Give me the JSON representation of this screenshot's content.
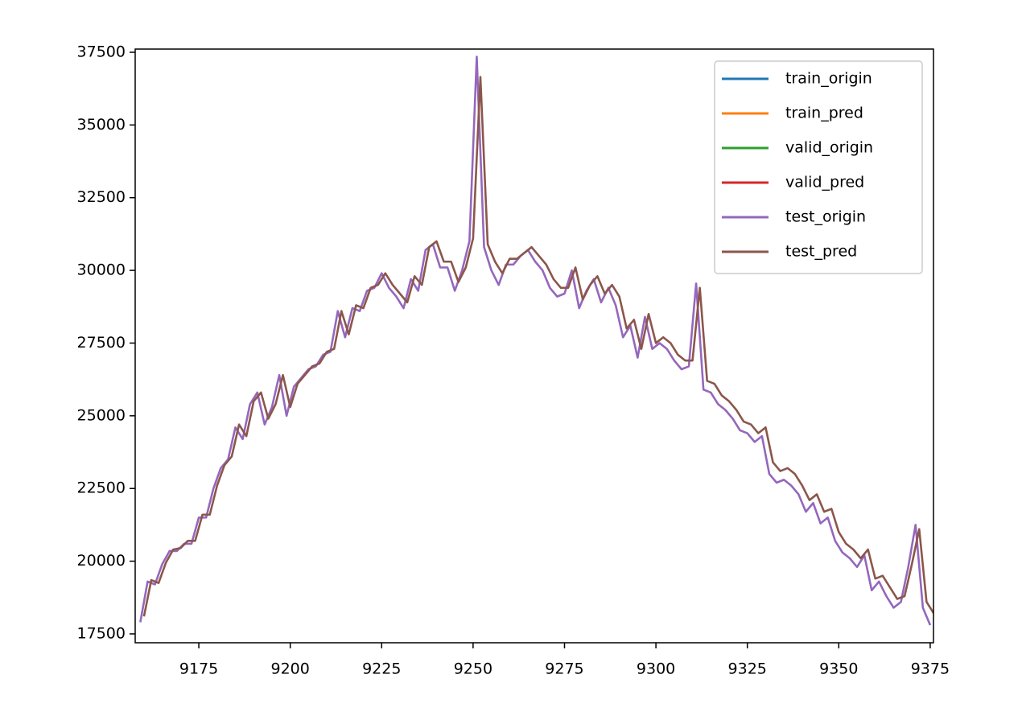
{
  "chart_data": {
    "type": "line",
    "xlim": [
      9157.6,
      9375.9
    ],
    "ylim": [
      17195,
      37610
    ],
    "xticks": [
      9175,
      9200,
      9225,
      9250,
      9275,
      9300,
      9325,
      9350,
      9375
    ],
    "yticks": [
      17500,
      20000,
      22500,
      25000,
      27500,
      30000,
      32500,
      35000,
      37500
    ],
    "legend": "upper right",
    "series": [
      {
        "name": "train_origin",
        "color": "#1f77b4",
        "x": [],
        "values": []
      },
      {
        "name": "train_pred",
        "color": "#ff7f0e",
        "x": [],
        "values": []
      },
      {
        "name": "valid_origin",
        "color": "#2ca02c",
        "x": [],
        "values": []
      },
      {
        "name": "valid_pred",
        "color": "#d62728",
        "x": [],
        "values": []
      },
      {
        "name": "test_origin",
        "color": "#9467bd",
        "x": [
          9159,
          9161,
          9163,
          9165,
          9167,
          9169,
          9171,
          9173,
          9175,
          9177,
          9179,
          9181,
          9183,
          9185,
          9187,
          9189,
          9191,
          9193,
          9195,
          9197,
          9199,
          9201,
          9203,
          9205,
          9207,
          9209,
          9211,
          9213,
          9215,
          9217,
          9219,
          9221,
          9223,
          9225,
          9227,
          9229,
          9231,
          9233,
          9235,
          9237,
          9239,
          9241,
          9243,
          9245,
          9247,
          9249,
          9251,
          9253,
          9255,
          9257,
          9259,
          9261,
          9263,
          9265,
          9267,
          9269,
          9271,
          9273,
          9275,
          9277,
          9279,
          9281,
          9283,
          9285,
          9287,
          9289,
          9291,
          9293,
          9295,
          9297,
          9299,
          9301,
          9303,
          9305,
          9307,
          9309,
          9311,
          9313,
          9315,
          9317,
          9319,
          9321,
          9323,
          9325,
          9327,
          9329,
          9331,
          9333,
          9335,
          9337,
          9339,
          9341,
          9343,
          9345,
          9347,
          9349,
          9351,
          9353,
          9355,
          9357,
          9359,
          9361,
          9363,
          9365,
          9367,
          9369,
          9371,
          9373,
          9375
        ],
        "values": [
          17900,
          19300,
          19200,
          19900,
          20350,
          20350,
          20600,
          20600,
          21500,
          21500,
          22500,
          23200,
          23500,
          24600,
          24200,
          25400,
          25800,
          24700,
          25300,
          26400,
          25000,
          26000,
          26300,
          26600,
          26700,
          27100,
          27200,
          28600,
          27700,
          28700,
          28600,
          29300,
          29400,
          29900,
          29400,
          29100,
          28700,
          29700,
          29300,
          30700,
          30900,
          30100,
          30100,
          29300,
          30000,
          31000,
          37350,
          30800,
          30000,
          29500,
          30200,
          30200,
          30500,
          30700,
          30300,
          30000,
          29400,
          29100,
          29200,
          30000,
          28700,
          29300,
          29700,
          28900,
          29400,
          28800,
          27700,
          28100,
          27000,
          28400,
          27300,
          27500,
          27300,
          26900,
          26600,
          26700,
          29550,
          25900,
          25800,
          25400,
          25200,
          24900,
          24500,
          24400,
          24100,
          24300,
          23000,
          22700,
          22800,
          22600,
          22300,
          21700,
          22000,
          21300,
          21500,
          20700,
          20300,
          20100,
          19800,
          20200,
          19000,
          19300,
          18800,
          18400,
          18600,
          19800,
          21250,
          18400,
          17800
        ]
      },
      {
        "name": "test_pred",
        "color": "#8c564b",
        "x": [
          9160,
          9162,
          9164,
          9166,
          9168,
          9170,
          9172,
          9174,
          9176,
          9178,
          9180,
          9182,
          9184,
          9186,
          9188,
          9190,
          9192,
          9194,
          9196,
          9198,
          9200,
          9202,
          9204,
          9206,
          9208,
          9210,
          9212,
          9214,
          9216,
          9218,
          9220,
          9222,
          9224,
          9226,
          9228,
          9230,
          9232,
          9234,
          9236,
          9238,
          9240,
          9242,
          9244,
          9246,
          9248,
          9250,
          9252,
          9254,
          9256,
          9258,
          9260,
          9262,
          9264,
          9266,
          9268,
          9270,
          9272,
          9274,
          9276,
          9278,
          9280,
          9282,
          9284,
          9286,
          9288,
          9290,
          9292,
          9294,
          9296,
          9298,
          9300,
          9302,
          9304,
          9306,
          9308,
          9310,
          9312,
          9314,
          9316,
          9318,
          9320,
          9322,
          9324,
          9326,
          9328,
          9330,
          9332,
          9334,
          9336,
          9338,
          9340,
          9342,
          9344,
          9346,
          9348,
          9350,
          9352,
          9354,
          9356,
          9358,
          9360,
          9362,
          9364,
          9366,
          9368,
          9370,
          9372,
          9374,
          9376
        ],
        "values": [
          18100,
          19350,
          19250,
          19950,
          20400,
          20450,
          20700,
          20700,
          21600,
          21600,
          22600,
          23300,
          23600,
          24700,
          24300,
          25500,
          25800,
          24900,
          25400,
          26400,
          25300,
          26100,
          26400,
          26700,
          26800,
          27200,
          27300,
          28600,
          27800,
          28800,
          28700,
          29400,
          29500,
          29900,
          29500,
          29200,
          28900,
          29800,
          29500,
          30800,
          31000,
          30300,
          30300,
          29600,
          30100,
          31100,
          36650,
          30900,
          30300,
          29900,
          30400,
          30400,
          30600,
          30800,
          30500,
          30200,
          29700,
          29400,
          29400,
          30100,
          29000,
          29500,
          29800,
          29200,
          29500,
          29100,
          28000,
          28300,
          27300,
          28500,
          27500,
          27700,
          27500,
          27100,
          26900,
          26900,
          29400,
          26200,
          26100,
          25700,
          25500,
          25200,
          24800,
          24700,
          24400,
          24600,
          23400,
          23100,
          23200,
          23000,
          22600,
          22100,
          22300,
          21700,
          21800,
          21000,
          20600,
          20400,
          20100,
          20400,
          19400,
          19500,
          19100,
          18700,
          18800,
          19900,
          21100,
          18600,
          18200
        ]
      }
    ]
  }
}
